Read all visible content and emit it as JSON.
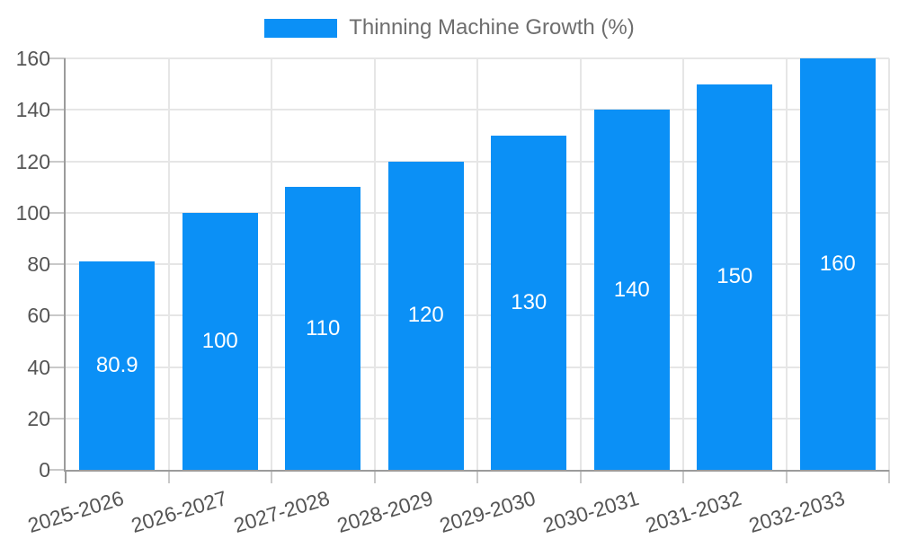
{
  "chart_data": {
    "type": "bar",
    "legend": "Thinning Machine Growth (%)",
    "title": "Thinning Machine Growth (%)",
    "categories": [
      "2025-2026",
      "2026-2027",
      "2027-2028",
      "2028-2029",
      "2029-2030",
      "2030-2031",
      "2031-2032",
      "2032-2033"
    ],
    "values": [
      80.9,
      100,
      110,
      120,
      130,
      140,
      150,
      160
    ],
    "bar_labels": [
      "80.9",
      "100",
      "110",
      "120",
      "130",
      "140",
      "150",
      "160"
    ],
    "xlabel": "",
    "ylabel": "",
    "ylim": [
      0,
      160
    ],
    "yticks": [
      0,
      20,
      40,
      60,
      80,
      100,
      120,
      140,
      160
    ],
    "grid": true,
    "legend_position": "top-center",
    "value_label_position": "center-inside",
    "colors": {
      "bar": "#0b90f6",
      "grid": "#e6e6e6",
      "axis": "#9b9b9b",
      "tick": "#c9c9c9",
      "tick_text": "#555555",
      "legend_text": "#6e6e6e",
      "value_text": "#ffffff",
      "background": "#ffffff"
    }
  }
}
